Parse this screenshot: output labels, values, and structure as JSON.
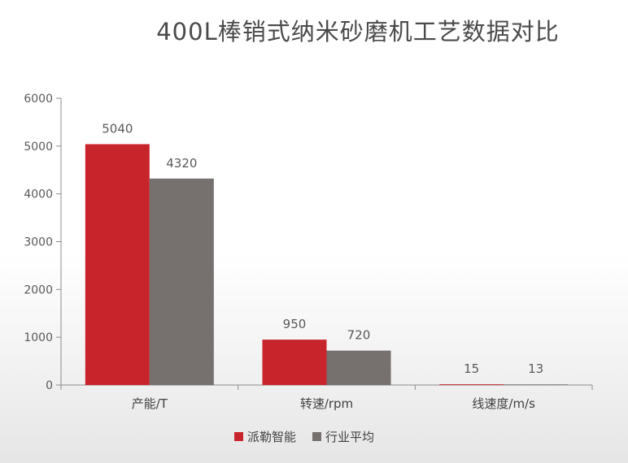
{
  "chart_data": {
    "type": "bar",
    "title": "400L棒销式纳米砂磨机工艺数据对比",
    "categories": [
      "产能/T",
      "转速/rpm",
      "线速度/m/s"
    ],
    "series": [
      {
        "name": "派勒智能",
        "values": [
          5040,
          950,
          15
        ],
        "color": "#c8242c"
      },
      {
        "name": "行业平均",
        "values": [
          4320,
          720,
          13
        ],
        "color": "#76706f"
      }
    ],
    "xlabel": "",
    "ylabel": "",
    "ylim": [
      0,
      6000
    ],
    "yticks": [
      0,
      1000,
      2000,
      3000,
      4000,
      5000,
      6000
    ],
    "grid": false,
    "legend": "bottom-center"
  }
}
